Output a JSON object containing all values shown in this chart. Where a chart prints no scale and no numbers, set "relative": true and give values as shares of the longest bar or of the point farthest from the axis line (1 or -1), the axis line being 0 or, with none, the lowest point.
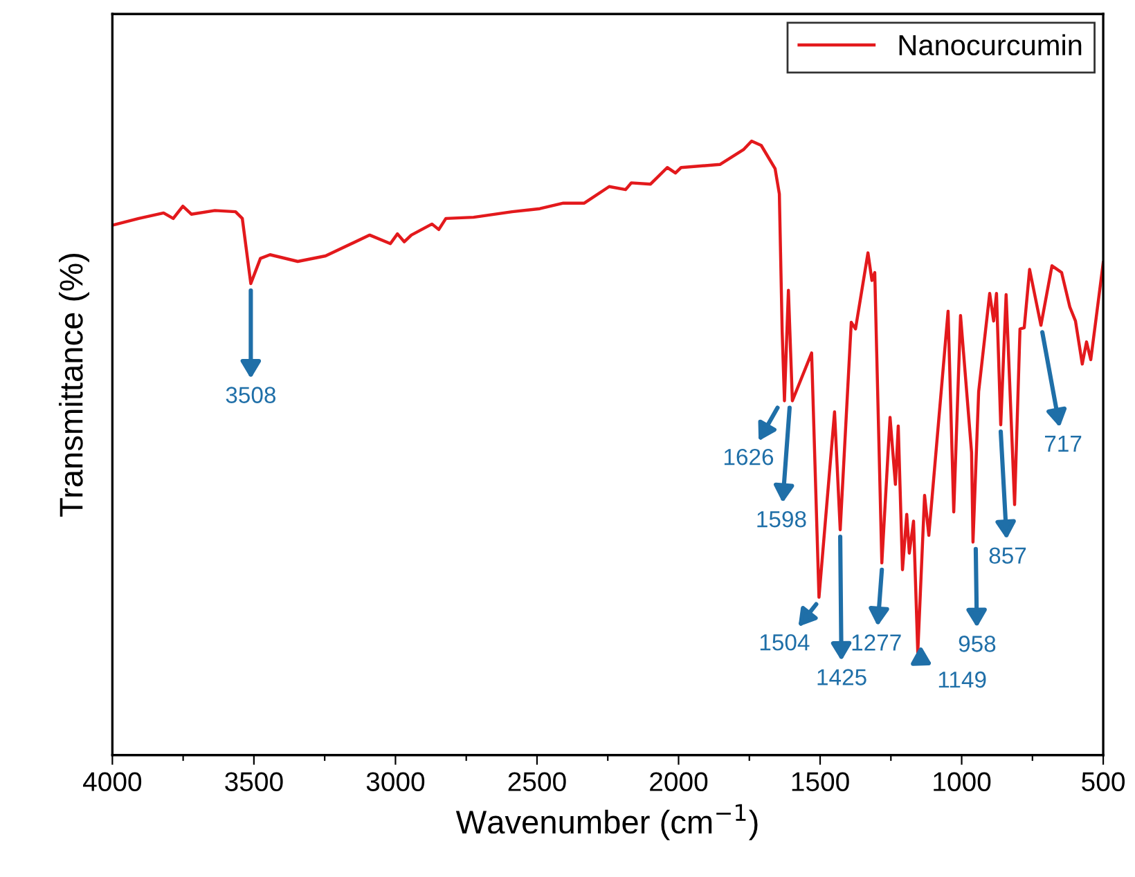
{
  "chart_data": {
    "type": "line",
    "relative": true,
    "xlabel": "Wavenumber (cm$^{−1}$)",
    "ylabel": "Transmittance (%)",
    "xlim": [
      4000,
      500
    ],
    "xticks": [
      4000,
      {
        "value": 3750,
        "label": null
      },
      3500,
      {
        "value": 3250,
        "label": null
      },
      3000,
      {
        "value": 2750,
        "label": null
      },
      2500,
      {
        "value": 2250,
        "label": null
      },
      2000,
      {
        "value": 1750,
        "label": null
      },
      1500,
      {
        "value": 1250,
        "label": null
      },
      1000,
      {
        "value": 750,
        "label": null
      },
      500
    ],
    "legend": "top right",
    "tick_labels": "x",
    "grid": false,
    "marker": "none",
    "line_style": "solid",
    "series": [
      {
        "name": "Nanocurcumin",
        "color": "#e3191c",
        "x": [
          4000,
          3907,
          3819,
          3785,
          3751,
          3721,
          3638,
          3565,
          3541,
          3511,
          3477,
          3443,
          3345,
          3247,
          3091,
          3018,
          2993,
          2969,
          2944,
          2871,
          2847,
          2822,
          2724,
          2588,
          2490,
          2407,
          2333,
          2245,
          2187,
          2167,
          2099,
          2040,
          2011,
          1991,
          1854,
          1771,
          1742,
          1708,
          1659,
          1644,
          1634,
          1626,
          1612,
          1598,
          1530,
          1504,
          1449,
          1429,
          1390,
          1375,
          1331,
          1317,
          1307,
          1282,
          1253,
          1234,
          1224,
          1209,
          1194,
          1185,
          1170,
          1155,
          1131,
          1116,
          1048,
          1028,
          1004,
          965,
          960,
          940,
          901,
          887,
          877,
          862,
          843,
          813,
          794,
          779,
          760,
          720,
          681,
          647,
          618,
          598,
          574,
          559,
          544,
          525,
          500
        ],
        "values": [
          0.863,
          0.874,
          0.883,
          0.874,
          0.894,
          0.881,
          0.887,
          0.885,
          0.874,
          0.768,
          0.809,
          0.815,
          0.804,
          0.813,
          0.847,
          0.833,
          0.849,
          0.836,
          0.847,
          0.865,
          0.856,
          0.874,
          0.876,
          0.885,
          0.89,
          0.899,
          0.899,
          0.926,
          0.921,
          0.932,
          0.93,
          0.957,
          0.948,
          0.957,
          0.962,
          0.986,
          1.0,
          0.993,
          0.955,
          0.914,
          0.689,
          0.577,
          0.757,
          0.577,
          0.655,
          0.257,
          0.559,
          0.367,
          0.705,
          0.694,
          0.818,
          0.773,
          0.786,
          0.313,
          0.55,
          0.441,
          0.536,
          0.302,
          0.392,
          0.329,
          0.381,
          0.167,
          0.423,
          0.358,
          0.723,
          0.396,
          0.716,
          0.493,
          0.347,
          0.592,
          0.752,
          0.707,
          0.752,
          0.538,
          0.75,
          0.408,
          0.694,
          0.696,
          0.791,
          0.7,
          0.797,
          0.786,
          0.73,
          0.707,
          0.637,
          0.673,
          0.644,
          0.712,
          0.802
        ]
      }
    ],
    "annotations": [
      {
        "text": "3508",
        "x": 3511,
        "y": 0.768
      },
      {
        "text": "1626",
        "x": 1626,
        "y": 0.577
      },
      {
        "text": "1598",
        "x": 1598,
        "y": 0.577
      },
      {
        "text": "1504",
        "x": 1504,
        "y": 0.257
      },
      {
        "text": "1425",
        "x": 1429,
        "y": 0.367
      },
      {
        "text": "1277",
        "x": 1282,
        "y": 0.313
      },
      {
        "text": "1149",
        "x": 1155,
        "y": 0.167
      },
      {
        "text": "958",
        "x": 960,
        "y": 0.347
      },
      {
        "text": "857",
        "x": 862,
        "y": 0.538
      },
      {
        "text": "717",
        "x": 720,
        "y": 0.7
      }
    ]
  }
}
